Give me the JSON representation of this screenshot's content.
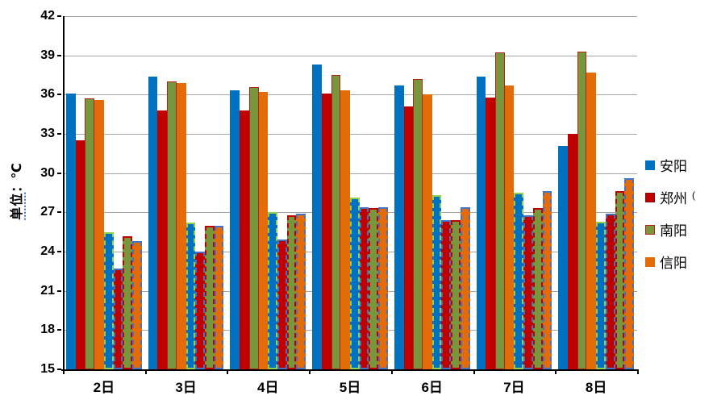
{
  "y_axis": {
    "title_prefix": "单位",
    "title_suffix": "：℃",
    "min": 15,
    "max": 42,
    "step": 3,
    "tick_labels": [
      "15",
      "18",
      "21",
      "24",
      "27",
      "30",
      "33",
      "36",
      "39",
      "42"
    ]
  },
  "x_axis": {
    "categories": [
      "2日",
      "3日",
      "4日",
      "5日",
      "6日",
      "7日",
      "8日"
    ]
  },
  "legend": {
    "items": [
      {
        "label": "安阳",
        "color": "#0070C0",
        "swatch_border": "none"
      },
      {
        "label": "郑州",
        "color": "#C00000",
        "swatch_border": "#7f1010",
        "suffix": "("
      },
      {
        "label": "南阳",
        "color": "#78963C",
        "swatch_border": "#B02418"
      },
      {
        "label": "信阳",
        "color": "#E36C09",
        "swatch_border": "none"
      }
    ]
  },
  "chart_data": {
    "type": "bar",
    "title": "",
    "xlabel": "",
    "ylabel": "单位：℃",
    "ylim": [
      15,
      42
    ],
    "grid": true,
    "legend_position": "right",
    "categories": [
      "2日",
      "3日",
      "4日",
      "5日",
      "6日",
      "7日",
      "8日"
    ],
    "series": [
      {
        "name": "安阳",
        "variant": "solid",
        "color": "#0070C0",
        "border": "none",
        "values": [
          36.1,
          37.4,
          36.3,
          38.3,
          36.7,
          37.4,
          32.1
        ]
      },
      {
        "name": "郑州",
        "variant": "solid",
        "color": "#C00000",
        "border": "none",
        "values": [
          32.5,
          34.8,
          34.8,
          36.1,
          35.1,
          35.8,
          33.0
        ]
      },
      {
        "name": "南阳",
        "variant": "solid",
        "color": "#78963C",
        "border": "#B02418",
        "values": [
          35.7,
          37.0,
          36.6,
          37.5,
          37.2,
          39.2,
          39.3
        ]
      },
      {
        "name": "信阳",
        "variant": "solid",
        "color": "#E36C09",
        "border": "none",
        "values": [
          35.6,
          36.9,
          36.2,
          36.3,
          36.0,
          36.7,
          37.7
        ]
      },
      {
        "name": "安阳",
        "variant": "dashed",
        "color": "#0070C0",
        "border": "#92D050",
        "values": [
          25.5,
          26.2,
          27.0,
          28.1,
          28.3,
          28.5,
          26.3
        ]
      },
      {
        "name": "郑州",
        "variant": "dashed",
        "color": "#C00000",
        "border": "#4472C4",
        "values": [
          22.7,
          24.0,
          24.9,
          27.4,
          26.4,
          26.8,
          26.9
        ]
      },
      {
        "name": "南阳",
        "variant": "dashed",
        "color": "#78963C",
        "border": "#C00000",
        "values": [
          25.2,
          26.0,
          26.8,
          27.3,
          26.4,
          27.3,
          28.6
        ]
      },
      {
        "name": "信阳",
        "variant": "dashed",
        "color": "#E36C09",
        "border": "#4472C4",
        "values": [
          24.8,
          26.0,
          26.9,
          27.4,
          27.4,
          28.6,
          29.6
        ]
      }
    ]
  },
  "colors": {
    "gridline": "#a6a6a6",
    "axis": "#000000",
    "accent_blue": "#0070C0",
    "accent_red": "#C00000",
    "accent_green": "#78963C",
    "accent_orange": "#E36C09"
  }
}
